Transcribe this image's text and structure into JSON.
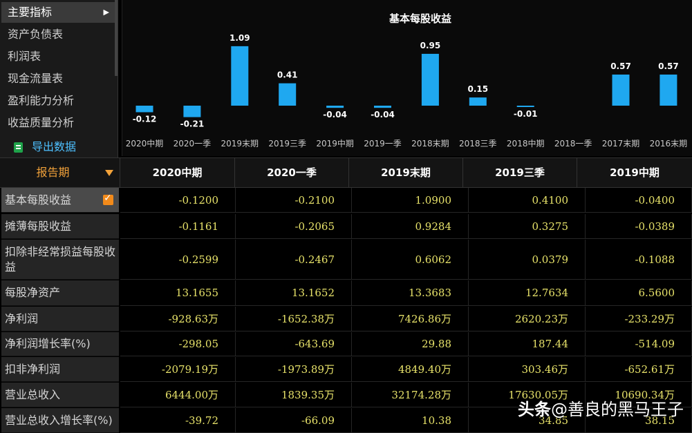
{
  "menu": {
    "items": [
      "主要指标",
      "资产负债表",
      "利润表",
      "现金流量表",
      "盈利能力分析",
      "收益质量分析"
    ],
    "active_index": 0,
    "export_label": "导出数据"
  },
  "chart_data": {
    "type": "bar",
    "title": "基本每股收益",
    "categories": [
      "2020中期",
      "2020一季",
      "2019末期",
      "2019三季",
      "2019中期",
      "2019一季",
      "2018末期",
      "2018三季",
      "2018中期",
      "2018一季",
      "2017末期",
      "2016末期"
    ],
    "values": [
      -0.12,
      -0.21,
      1.09,
      0.41,
      -0.04,
      -0.04,
      0.95,
      0.15,
      -0.01,
      0,
      0.57,
      0.57
    ],
    "value_labels": [
      "-0.12",
      "-0.21",
      "1.09",
      "0.41",
      "-0.04",
      "-0.04",
      "0.95",
      "0.15",
      "-0.01",
      "",
      "0.57",
      "0.57"
    ],
    "bar_color": "#1fa8f0"
  },
  "table": {
    "header_label": "报告期",
    "columns": [
      "2020中期",
      "2020一季",
      "2019末期",
      "2019三季",
      "2019中期"
    ],
    "rows": [
      {
        "label": "基本每股收益",
        "values": [
          "-0.1200",
          "-0.2100",
          "1.0900",
          "0.4100",
          "-0.0400"
        ],
        "selected": true
      },
      {
        "label": "摊薄每股收益",
        "values": [
          "-0.1161",
          "-0.2065",
          "0.9284",
          "0.3275",
          "-0.0389"
        ]
      },
      {
        "label": "扣除非经常损益每股收益",
        "values": [
          "-0.2599",
          "-0.2467",
          "0.6062",
          "0.0379",
          "-0.1088"
        ]
      },
      {
        "label": "每股净资产",
        "values": [
          "13.1655",
          "13.1652",
          "13.3683",
          "12.7634",
          "6.5600"
        ]
      },
      {
        "label": "净利润",
        "values": [
          "-928.63万",
          "-1652.38万",
          "7426.86万",
          "2620.23万",
          "-233.29万"
        ]
      },
      {
        "label": "净利润增长率(%)",
        "values": [
          "-298.05",
          "-643.69",
          "29.88",
          "187.44",
          "-514.09"
        ]
      },
      {
        "label": "扣非净利润",
        "values": [
          "-2079.19万",
          "-1973.89万",
          "4849.40万",
          "303.46万",
          "-652.61万"
        ]
      },
      {
        "label": "营业总收入",
        "values": [
          "6444.00万",
          "1839.35万",
          "32174.28万",
          "17630.05万",
          "10690.34万"
        ]
      },
      {
        "label": "营业总收入增长率(%)",
        "values": [
          "-39.72",
          "-66.09",
          "10.38",
          "34.85",
          "38.15"
        ]
      }
    ]
  },
  "watermark": {
    "text1": "头条",
    "text2": "@善良的黑马王子"
  },
  "colors": {
    "accent_orange": "#f2a23a",
    "value_yellow": "#e8e36a",
    "bar_blue": "#1fa8f0",
    "export_blue": "#4ec0ff"
  }
}
